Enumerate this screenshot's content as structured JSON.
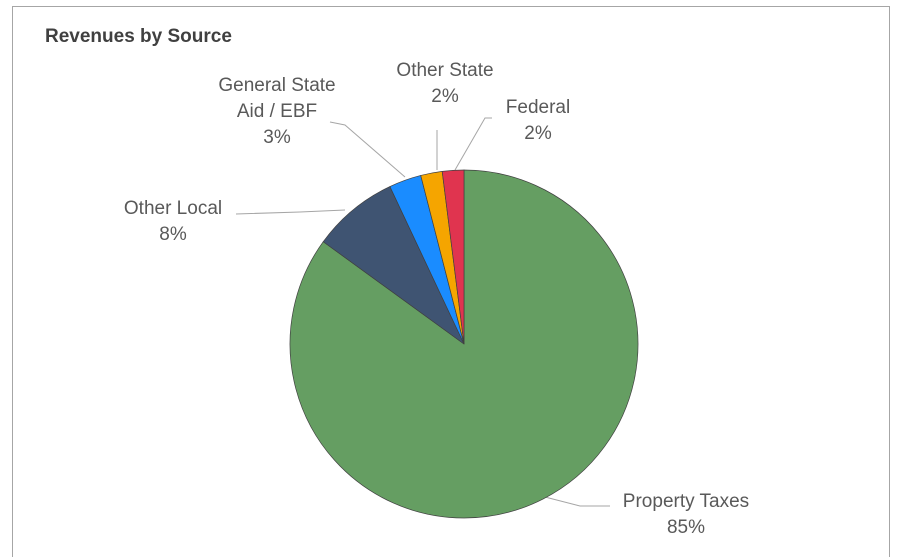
{
  "chart_data": {
    "type": "pie",
    "title": "Revenues by Source",
    "categories": [
      "Property Taxes",
      "Other Local",
      "General State Aid / EBF",
      "Other State",
      "Federal"
    ],
    "values": [
      85,
      8,
      3,
      2,
      2
    ],
    "value_labels": [
      "85%",
      "8%",
      "3%",
      "2%",
      "2%"
    ],
    "colors": [
      "#659e62",
      "#3f5472",
      "#1a8cff",
      "#f5a500",
      "#e0344f"
    ]
  }
}
